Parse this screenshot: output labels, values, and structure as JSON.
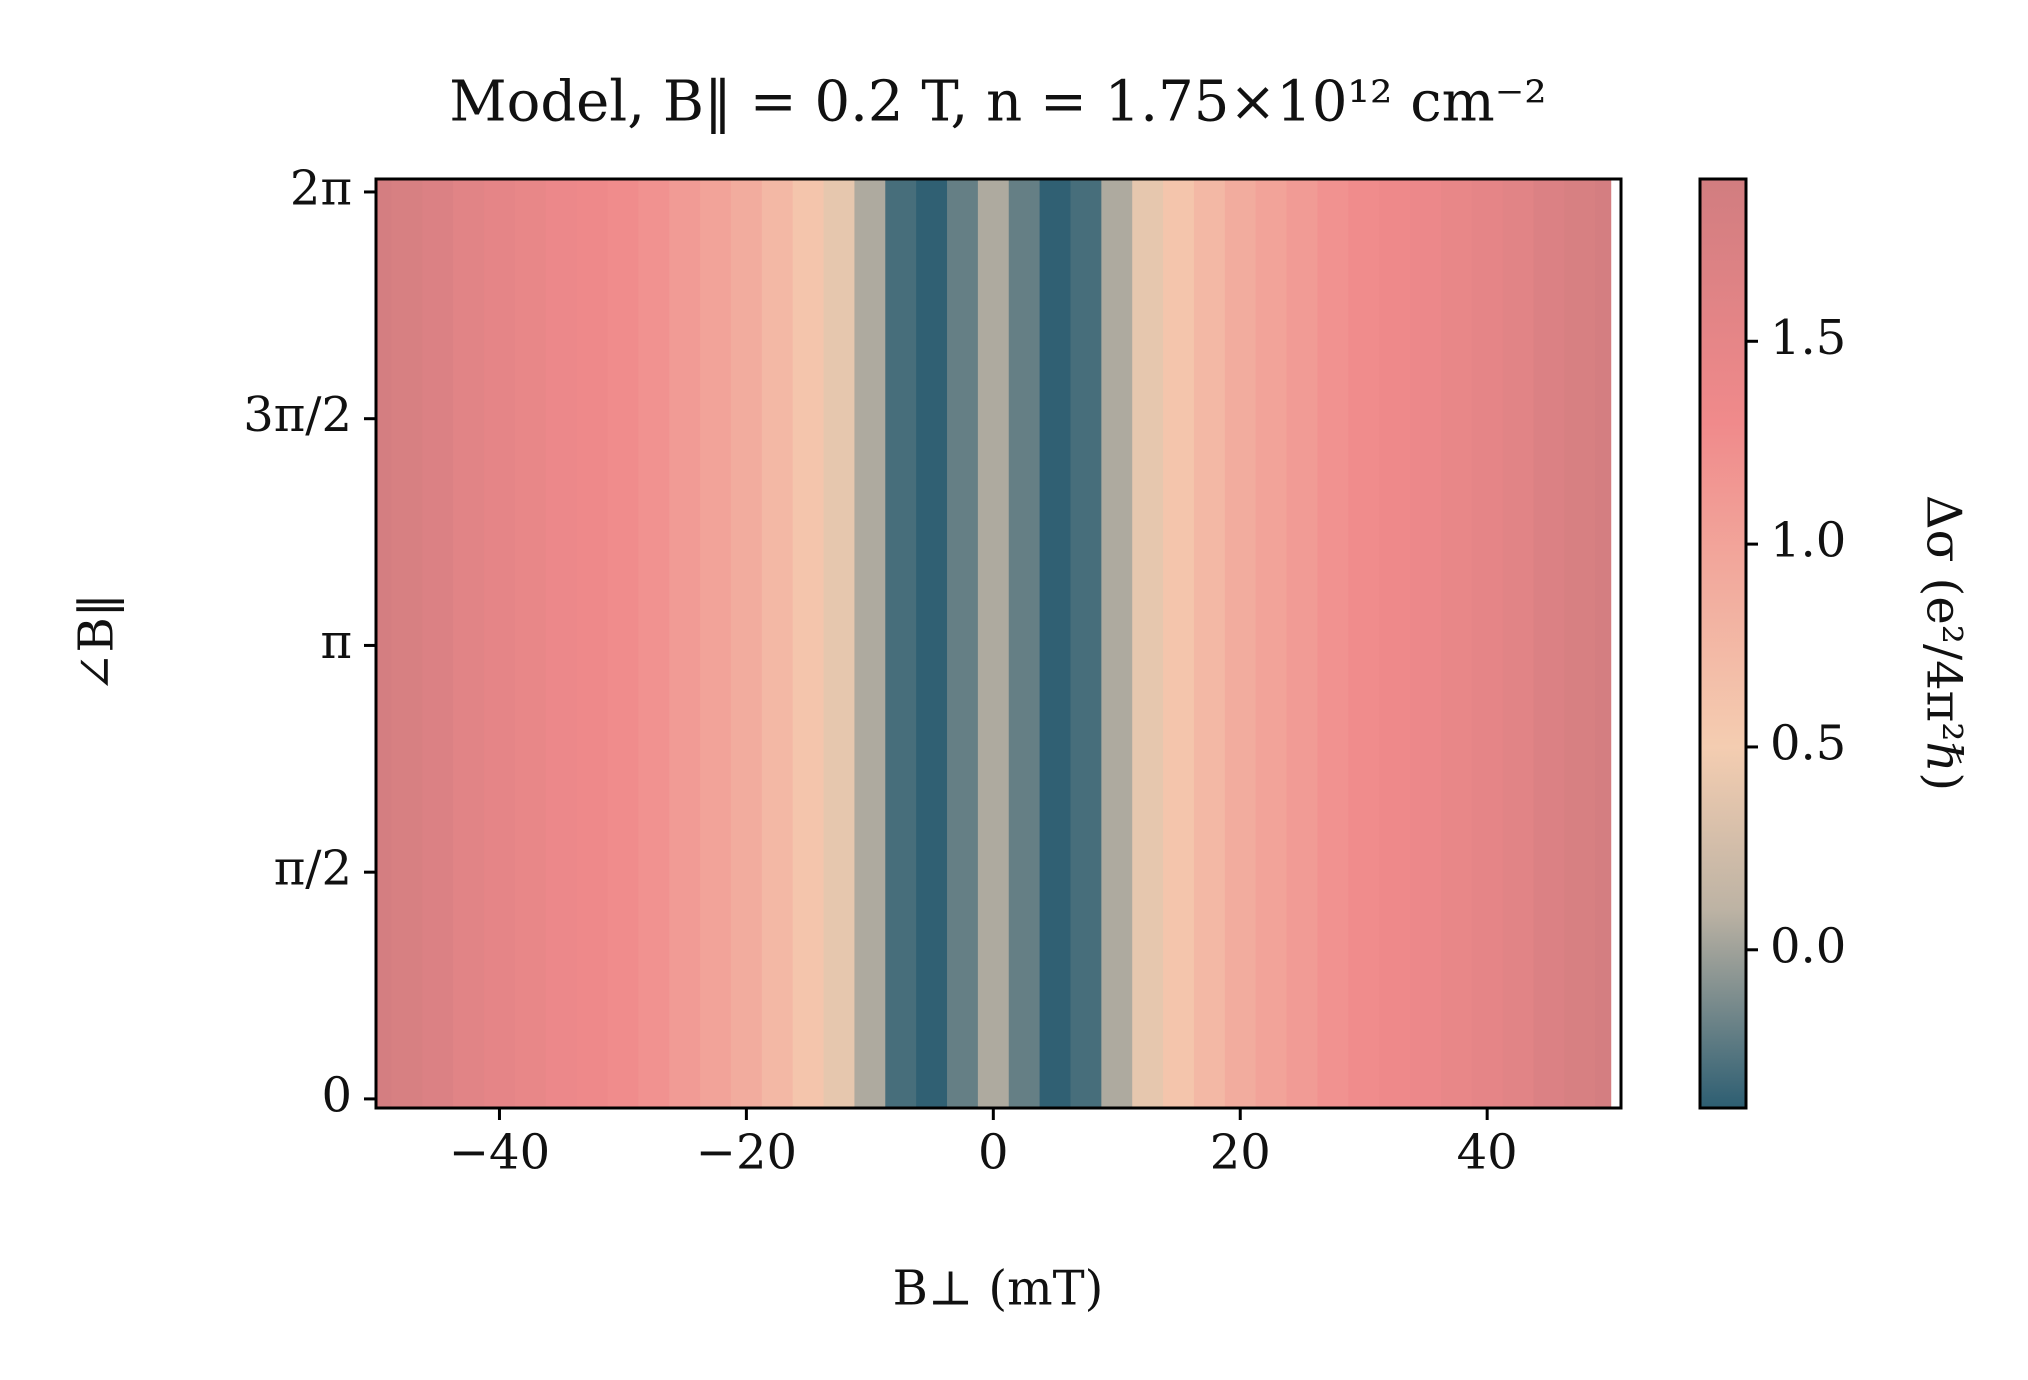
{
  "chart_data": {
    "type": "heatmap",
    "title": "Model, B‖ = 0.2 T, n = 1.75×10¹² cm⁻²",
    "x_label": "B⊥ (mT)",
    "y_label": "∠B‖",
    "x": [
      -50,
      -47.5,
      -45,
      -42.5,
      -40,
      -37.5,
      -35,
      -32.5,
      -30,
      -27.5,
      -25,
      -22.5,
      -20,
      -17.5,
      -15,
      -12.5,
      -10,
      -7.5,
      -5,
      -2.5,
      0,
      2.5,
      5,
      7.5,
      10,
      12.5,
      15,
      17.5,
      20,
      22.5,
      25,
      27.5,
      30,
      32.5,
      35,
      37.5,
      40,
      42.5,
      45,
      47.5,
      50
    ],
    "values": [
      1.84,
      1.78,
      1.7,
      1.6,
      1.52,
      1.45,
      1.38,
      1.33,
      1.28,
      1.2,
      1.1,
      1.0,
      0.9,
      0.75,
      0.6,
      0.4,
      0.05,
      -0.3,
      -0.38,
      -0.2,
      0.05,
      -0.2,
      -0.38,
      -0.3,
      0.05,
      0.4,
      0.6,
      0.75,
      0.9,
      1.0,
      1.1,
      1.2,
      1.28,
      1.33,
      1.38,
      1.45,
      1.52,
      1.6,
      1.7,
      1.78,
      1.84
    ],
    "xlim": [
      -50,
      50.84
    ],
    "xticks": [
      {
        "value": -40,
        "label": "−40"
      },
      {
        "value": -20,
        "label": "−20"
      },
      0,
      20,
      40
    ],
    "ylim": [
      -0.063,
      6.373
    ],
    "yticks": [
      {
        "value": 0,
        "label": "0"
      },
      {
        "value": 1.5708,
        "label": "π/2"
      },
      {
        "value": 3.1416,
        "label": "π"
      },
      {
        "value": 4.7124,
        "label": "3π/2"
      },
      {
        "value": 6.2832,
        "label": "2π"
      }
    ],
    "colorbar": {
      "label": "Δσ (e²/4π²ℏ)",
      "lim": [
        -0.39,
        1.9
      ],
      "ticks": [
        {
          "value": 0,
          "label": "0.0"
        },
        0.5,
        {
          "value": 1,
          "label": "1.0"
        },
        1.5
      ]
    },
    "colormap": [
      {
        "value": -0.39,
        "color": "#2d5e72"
      },
      {
        "value": 0.1,
        "color": "#bdb3a4"
      },
      {
        "value": 0.5,
        "color": "#f4cdb1"
      },
      {
        "value": 1.3,
        "color": "#f08a8b"
      },
      {
        "value": 1.9,
        "color": "#d17d80"
      }
    ]
  }
}
